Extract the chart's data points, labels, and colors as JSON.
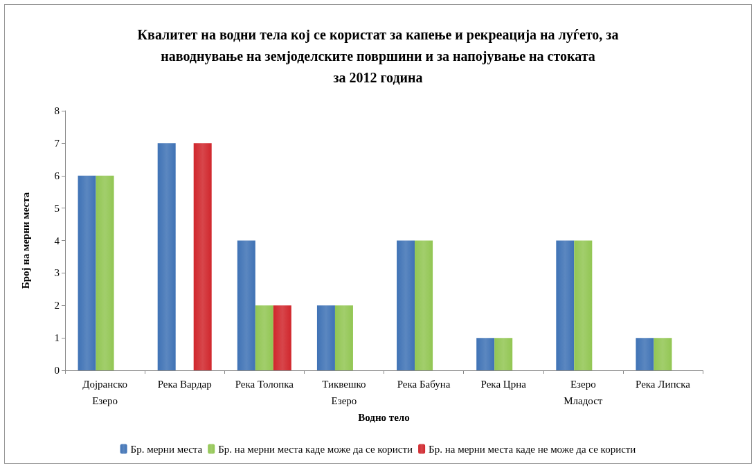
{
  "chart_data": {
    "type": "bar",
    "title": "Квалитет на водни тела кој се користат за капење и рекреација на луѓето, за\nнаводнување на земјоделските површини и за напојување на стоката\nза 2012 година",
    "xlabel": "Водно тело",
    "ylabel": "Број на мерни места",
    "categories": [
      "Дојранско Езеро",
      "Река Вардар",
      "Река Толопка",
      "Тиквешко Езеро",
      "Река Бабуна",
      "Река Црна",
      "Езеро Младост",
      "Река Липска"
    ],
    "series": [
      {
        "name": "Бр. мерни места",
        "color": "#3f72b5",
        "values": [
          6,
          7,
          4,
          2,
          4,
          1,
          4,
          1
        ]
      },
      {
        "name": "Бр. на мерни места каде може да се користи",
        "color": "#92c653",
        "values": [
          6,
          null,
          2,
          2,
          4,
          1,
          4,
          1
        ]
      },
      {
        "name": "Бр. на мерни места каде не може да се користи",
        "color": "#d0262c",
        "values": [
          null,
          7,
          2,
          null,
          null,
          null,
          null,
          null
        ]
      }
    ],
    "ylim": [
      0,
      8
    ],
    "yticks": [
      0,
      1,
      2,
      3,
      4,
      5,
      6,
      7,
      8
    ],
    "grid": false,
    "legend": "bottom"
  }
}
